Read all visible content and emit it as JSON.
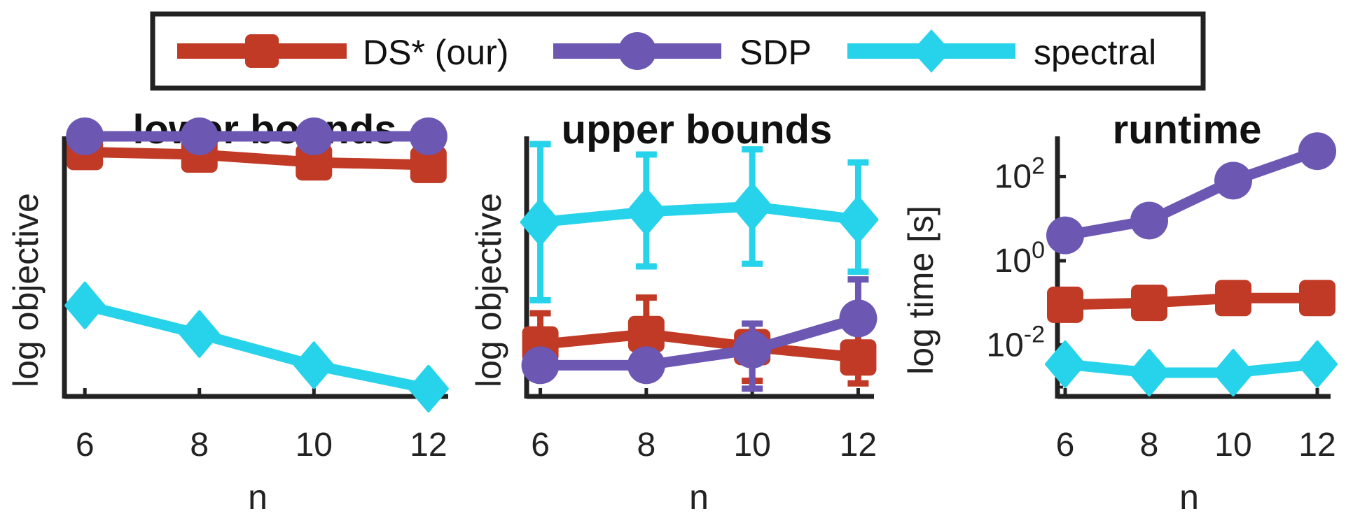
{
  "legend": {
    "entries": [
      {
        "name": "DS* (our)",
        "color": "#c03a26",
        "marker": "square"
      },
      {
        "name": "SDP",
        "color": "#6c57b3",
        "marker": "circle"
      },
      {
        "name": "spectral",
        "color": "#26d3ea",
        "marker": "diamond"
      }
    ]
  },
  "chart_data": [
    {
      "type": "line",
      "title": "lower bounds",
      "xlabel": "n",
      "ylabel": "log objective",
      "x": [
        6,
        8,
        10,
        12
      ],
      "xlim": [
        5.9,
        12.1
      ],
      "ylim": [
        0,
        100
      ],
      "yticks_shown": false,
      "series": [
        {
          "name": "DS* (our)",
          "values": [
            94,
            93,
            90,
            89
          ]
        },
        {
          "name": "SDP",
          "values": [
            100,
            100,
            100,
            100
          ]
        },
        {
          "name": "spectral",
          "values": [
            35,
            24,
            12,
            3
          ]
        }
      ]
    },
    {
      "type": "line",
      "title": "upper bounds",
      "xlabel": "n",
      "ylabel": "log objective",
      "x": [
        6,
        8,
        10,
        12
      ],
      "xlim": [
        5.9,
        12.1
      ],
      "ylim": [
        0,
        100
      ],
      "yticks_shown": false,
      "series": [
        {
          "name": "DS* (our)",
          "values": [
            20,
            24,
            19,
            15
          ],
          "err_low": [
            8,
            11,
            6,
            5
          ],
          "err_high": [
            32,
            38,
            24,
            27
          ]
        },
        {
          "name": "SDP",
          "values": [
            12,
            12,
            18,
            30
          ],
          "err_low": [
            12,
            12,
            3,
            30
          ],
          "err_high": [
            12,
            12,
            28,
            45
          ]
        },
        {
          "name": "spectral",
          "values": [
            67,
            71,
            73,
            68
          ],
          "err_low": [
            37,
            50,
            51,
            48
          ],
          "err_high": [
            97,
            93,
            95,
            90
          ]
        }
      ]
    },
    {
      "type": "line",
      "title": "runtime",
      "xlabel": "n",
      "ylabel": "log time [s]",
      "yscale": "log",
      "x": [
        6,
        8,
        10,
        12
      ],
      "xlim": [
        5.9,
        12.1
      ],
      "ylim": [
        0.0006,
        900
      ],
      "yticks": [
        {
          "value": 0.01,
          "base": "10",
          "exp": "-2"
        },
        {
          "value": 1,
          "base": "10",
          "exp": "0"
        },
        {
          "value": 100,
          "base": "10",
          "exp": "2"
        }
      ],
      "series": [
        {
          "name": "DS* (our)",
          "values": [
            0.09,
            0.1,
            0.13,
            0.13
          ]
        },
        {
          "name": "SDP",
          "values": [
            4,
            9,
            80,
            400
          ]
        },
        {
          "name": "spectral",
          "values": [
            0.0035,
            0.0022,
            0.0022,
            0.0035
          ]
        }
      ]
    }
  ]
}
